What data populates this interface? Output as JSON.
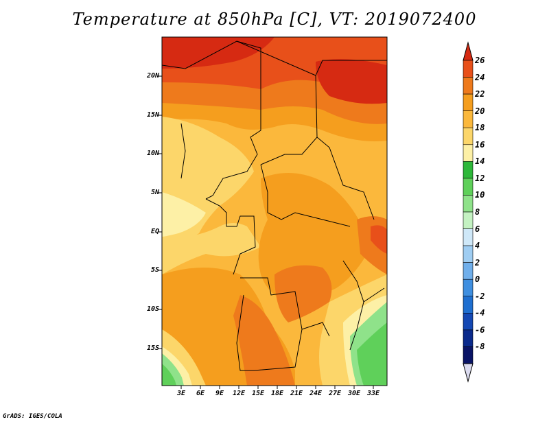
{
  "title": "Temperature at 850hPa [C], VT: 2019072400",
  "credit": "GrADS: IGES/COLA",
  "lat_labels": [
    "20N",
    "15N",
    "10N",
    "5N",
    "EQ",
    "5S",
    "10S",
    "15S"
  ],
  "lon_labels": [
    "3E",
    "6E",
    "9E",
    "12E",
    "15E",
    "18E",
    "21E",
    "24E",
    "27E",
    "30E",
    "33E"
  ],
  "colorbar": {
    "labels": [
      "26",
      "24",
      "22",
      "20",
      "18",
      "16",
      "14",
      "12",
      "10",
      "8",
      "6",
      "4",
      "2",
      "0",
      "-2",
      "-4",
      "-6",
      "-8"
    ],
    "colors": [
      "#d62a12",
      "#e8501a",
      "#ee7a1c",
      "#f59e1e",
      "#fbb83c",
      "#fcd66a",
      "#fdf0a6",
      "#2eb83a",
      "#5fd05a",
      "#8fe28a",
      "#c4f2c2",
      "#cfe8f8",
      "#9fcdf2",
      "#70afeb",
      "#3f8fe0",
      "#1f6fd0",
      "#1448b4",
      "#0a2a8c",
      "#0a1466",
      "#dcdcf0"
    ]
  },
  "icon": "colorbar-arrow-icon"
}
